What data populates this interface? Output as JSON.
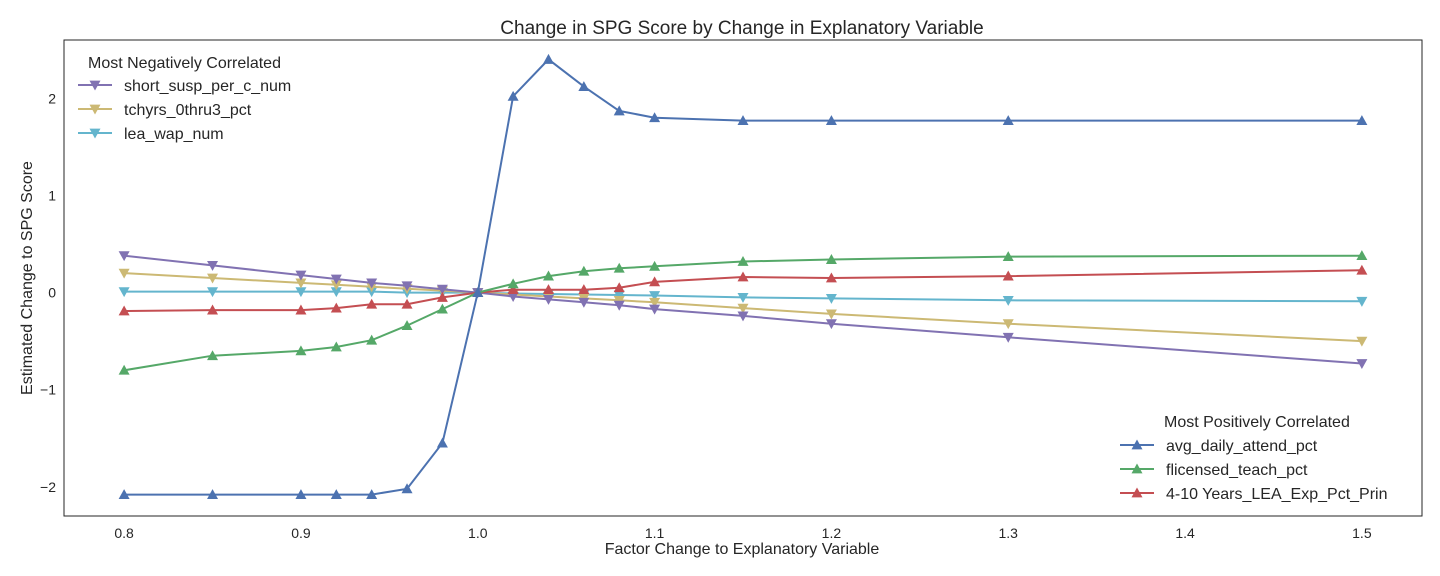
{
  "chart_data": {
    "type": "line",
    "title": "Change in SPG Score by Change in Explanatory Variable",
    "xlabel": "Factor Change to Explanatory Variable",
    "ylabel": "Estimated Change to SPG Score",
    "xlim": [
      0.766,
      1.534
    ],
    "ylim": [
      -2.3,
      2.6
    ],
    "xticks": [
      0.8,
      0.9,
      1.0,
      1.1,
      1.2,
      1.3,
      1.4,
      1.5
    ],
    "xtick_labels": [
      "0.8",
      "0.9",
      "1.0",
      "1.1",
      "1.2",
      "1.3",
      "1.4",
      "1.5"
    ],
    "yticks": [
      -2,
      -1,
      0,
      1,
      2
    ],
    "ytick_labels": [
      "−2",
      "−1",
      "0",
      "1",
      "2"
    ],
    "grid": false,
    "x": [
      0.8,
      0.85,
      0.9,
      0.92,
      0.94,
      0.96,
      0.98,
      1.0,
      1.02,
      1.04,
      1.06,
      1.08,
      1.1,
      1.15,
      1.2,
      1.3,
      1.5
    ],
    "legends": [
      {
        "title": "Most Negatively Correlated",
        "placement": "top-left",
        "series": [
          {
            "name": "short_susp_per_c_num",
            "color": "#8172b2",
            "marker": "triangle-down",
            "values": [
              0.38,
              0.28,
              0.18,
              0.14,
              0.1,
              0.07,
              0.035,
              0.0,
              -0.04,
              -0.07,
              -0.1,
              -0.13,
              -0.17,
              -0.24,
              -0.32,
              -0.46,
              -0.73
            ]
          },
          {
            "name": "tchyrs_0thru3_pct",
            "color": "#ccb974",
            "marker": "triangle-down",
            "values": [
              0.2,
              0.15,
              0.1,
              0.08,
              0.06,
              0.04,
              0.02,
              0.0,
              -0.02,
              -0.04,
              -0.06,
              -0.08,
              -0.1,
              -0.16,
              -0.22,
              -0.32,
              -0.5
            ]
          },
          {
            "name": "lea_wap_num",
            "color": "#64b5cd",
            "marker": "triangle-down",
            "values": [
              0.01,
              0.01,
              0.01,
              0.01,
              0.01,
              0.0,
              0.0,
              0.0,
              -0.01,
              -0.015,
              -0.02,
              -0.025,
              -0.03,
              -0.05,
              -0.06,
              -0.08,
              -0.09
            ]
          }
        ]
      },
      {
        "title": "Most Positively Correlated",
        "placement": "bottom-right",
        "series": [
          {
            "name": "avg_daily_attend_pct",
            "color": "#4c72b0",
            "marker": "triangle-up",
            "values": [
              -2.08,
              -2.08,
              -2.08,
              -2.08,
              -2.08,
              -2.02,
              -1.55,
              0.0,
              2.02,
              2.4,
              2.12,
              1.87,
              1.8,
              1.77,
              1.77,
              1.77,
              1.77
            ]
          },
          {
            "name": "flicensed_teach_pct",
            "color": "#55a868",
            "marker": "triangle-up",
            "values": [
              -0.8,
              -0.65,
              -0.6,
              -0.56,
              -0.49,
              -0.34,
              -0.17,
              0.0,
              0.09,
              0.17,
              0.22,
              0.25,
              0.27,
              0.32,
              0.34,
              0.37,
              0.38
            ]
          },
          {
            "name": "4-10 Years_LEA_Exp_Pct_Prin",
            "color": "#c44e52",
            "marker": "triangle-up",
            "values": [
              -0.19,
              -0.18,
              -0.18,
              -0.16,
              -0.12,
              -0.12,
              -0.05,
              0.0,
              0.03,
              0.03,
              0.03,
              0.05,
              0.11,
              0.16,
              0.15,
              0.17,
              0.23
            ]
          }
        ]
      }
    ]
  }
}
